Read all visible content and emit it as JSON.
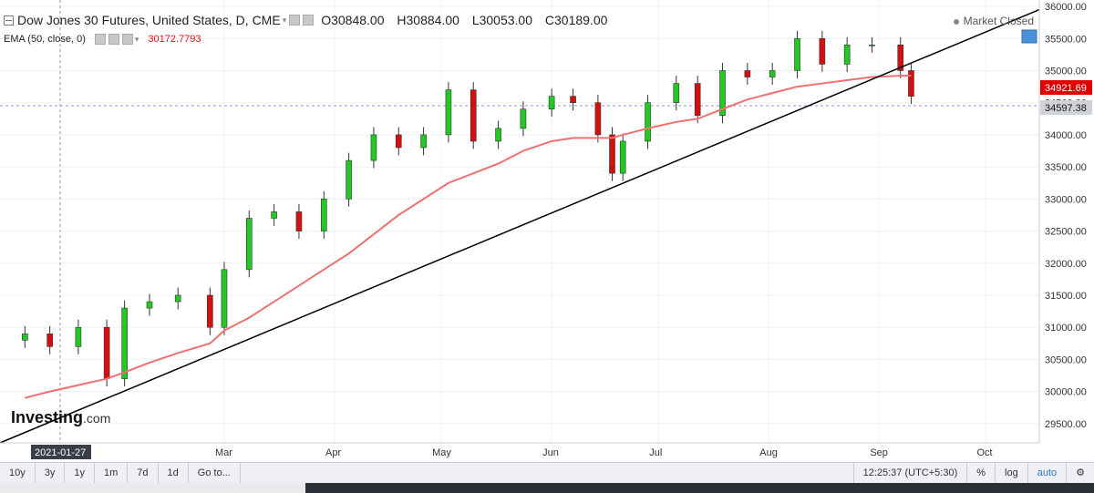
{
  "header": {
    "title": "Dow Jones 30 Futures, United States, D, CME",
    "ohlc": {
      "open": "O30848.00",
      "high": "H30884.00",
      "low": "L30053.00",
      "close": "C30189.00"
    },
    "market_status": "Market Closed"
  },
  "indicator": {
    "name": "EMA (50, close, 0)",
    "value": "30172.7793"
  },
  "price_labels": {
    "ema": "34921.69",
    "last": "34597.38"
  },
  "date_label": "2021-01-27",
  "logo": {
    "main": "Investing",
    "suffix": ".com"
  },
  "toolbar": {
    "ranges": [
      "10y",
      "3y",
      "1y",
      "1m",
      "7d",
      "1d"
    ],
    "goto": "Go to...",
    "time": "12:25:37 (UTC+5:30)",
    "percent": "%",
    "log": "log",
    "auto": "auto"
  },
  "colors": {
    "up": "#22c922",
    "down": "#d40f0f",
    "ema": "#f07070",
    "trend": "#000000",
    "ema_label_bg": "#e00000",
    "last_label_bg": "#cfd3d8"
  },
  "chart_data": {
    "type": "candlestick",
    "title": "Dow Jones 30 Futures, United States, D, CME",
    "x_tick_labels": [
      "Mar",
      "Apr",
      "May",
      "Jun",
      "Jul",
      "Aug",
      "Sep",
      "Oct"
    ],
    "y_tick_labels": [
      29500,
      30000,
      30500,
      31000,
      31500,
      32000,
      32500,
      33000,
      33500,
      34000,
      34500,
      35000,
      35500,
      36000
    ],
    "ylim": [
      29200,
      36100
    ],
    "series": [
      {
        "name": "Close",
        "dates": [
          "2021-01-04",
          "2021-01-11",
          "2021-01-19",
          "2021-01-27",
          "2021-02-01",
          "2021-02-08",
          "2021-02-16",
          "2021-02-25",
          "2021-03-01",
          "2021-03-08",
          "2021-03-15",
          "2021-03-22",
          "2021-03-29",
          "2021-04-05",
          "2021-04-12",
          "2021-04-19",
          "2021-04-26",
          "2021-05-03",
          "2021-05-10",
          "2021-05-17",
          "2021-05-24",
          "2021-06-01",
          "2021-06-07",
          "2021-06-14",
          "2021-06-18",
          "2021-06-21",
          "2021-06-28",
          "2021-07-06",
          "2021-07-12",
          "2021-07-19",
          "2021-07-26",
          "2021-08-02",
          "2021-08-09",
          "2021-08-16",
          "2021-08-23",
          "2021-08-30",
          "2021-09-07",
          "2021-09-10"
        ],
        "values": [
          30900,
          30700,
          31000,
          30200,
          31300,
          31400,
          31500,
          31000,
          31900,
          32700,
          32800,
          32500,
          33000,
          33600,
          34000,
          33800,
          34000,
          34700,
          33900,
          34100,
          34400,
          34600,
          34500,
          34000,
          33400,
          33900,
          34500,
          34800,
          34300,
          35000,
          34900,
          35000,
          35500,
          35100,
          35400,
          35400,
          35000,
          34600
        ]
      },
      {
        "name": "EMA (50, close, 0)",
        "values": [
          29900,
          30000,
          30100,
          30200,
          30300,
          30450,
          30600,
          30750,
          30950,
          31150,
          31400,
          31650,
          31900,
          32150,
          32450,
          32750,
          33000,
          33250,
          33400,
          33550,
          33750,
          33900,
          33950,
          33950,
          33950,
          34000,
          34100,
          34200,
          34250,
          34400,
          34550,
          34650,
          34750,
          34800,
          34850,
          34900,
          34920,
          34921.69
        ]
      }
    ],
    "trendline": {
      "start": {
        "date": "2020-12-28",
        "value": 29200
      },
      "end": {
        "date": "2021-10-16",
        "value": 35950
      }
    }
  }
}
